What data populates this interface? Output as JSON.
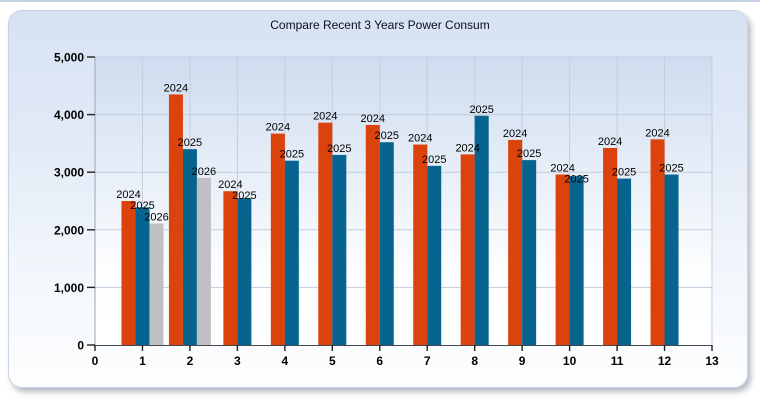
{
  "chart_data": {
    "type": "bar",
    "title": "Compare Recent 3 Years Power Consum",
    "xlabel": "",
    "ylabel": "",
    "xlim": [
      0,
      13
    ],
    "ylim": [
      0,
      5000
    ],
    "xticks": [
      0,
      1,
      2,
      3,
      4,
      5,
      6,
      7,
      8,
      9,
      10,
      11,
      12,
      13
    ],
    "ytick_step": 1000,
    "ytick_labels": [
      "0",
      "1,000",
      "2,000",
      "3,000",
      "4,000",
      "5,000"
    ],
    "grid": true,
    "legend_position": "none",
    "bar_value_labels": "series name shown above each bar",
    "categories": [
      1,
      2,
      3,
      4,
      5,
      6,
      7,
      8,
      9,
      10,
      11,
      12
    ],
    "series": [
      {
        "name": "2024",
        "color": "#dc420b",
        "values": [
          2500,
          4350,
          2670,
          3670,
          3860,
          3820,
          3480,
          3310,
          3560,
          2960,
          3420,
          3570
        ]
      },
      {
        "name": "2025",
        "color": "#07648f",
        "values": [
          2390,
          3400,
          2550,
          3200,
          3300,
          3520,
          3110,
          3980,
          3210,
          2930,
          2890,
          2960
        ]
      },
      {
        "name": "2026",
        "color": "#c0c0c4",
        "values": [
          2110,
          2900,
          null,
          null,
          null,
          null,
          null,
          null,
          null,
          null,
          null,
          null
        ]
      }
    ]
  },
  "style": {
    "panel_top_color": "#d6e2f4",
    "plot_top_color": "#cedcef",
    "gridline_color": "#c3cdde",
    "y_axis_color": "#9aa5b8",
    "x_axis_color": "#44484f",
    "title_color": "#0d0d1f"
  }
}
